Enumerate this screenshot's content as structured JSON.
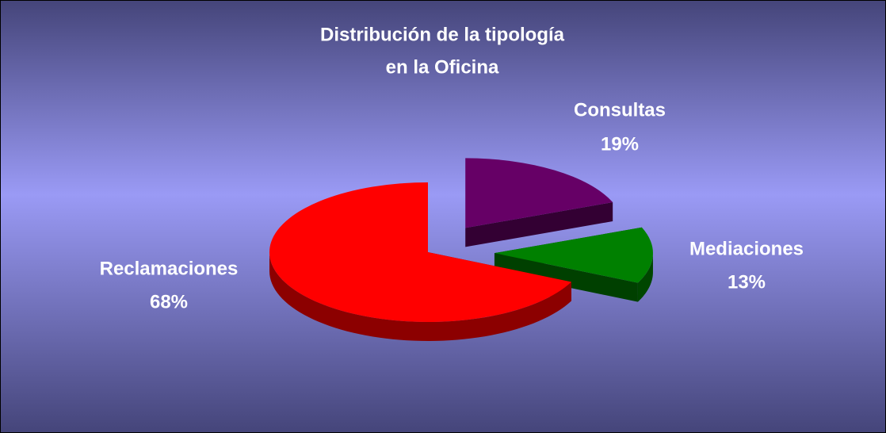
{
  "chart_data": {
    "type": "pie",
    "title": [
      "Distribución de la tipología",
      "en la Oficina"
    ],
    "categories": [
      "Consultas",
      "Mediaciones",
      "Reclamaciones"
    ],
    "values": [
      19,
      13,
      68
    ],
    "value_labels": [
      "19%",
      "13%",
      "68%"
    ],
    "colors": [
      "#660066",
      "#008000",
      "#ff0000"
    ]
  }
}
